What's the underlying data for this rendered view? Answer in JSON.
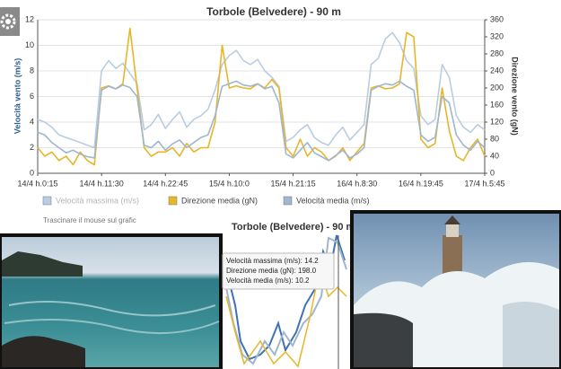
{
  "chart_data": [
    {
      "type": "line",
      "title": "Torbole (Belvedere) - 90 m",
      "y_label": "Velocità vento (m/s)",
      "y2_label": "Direzione vento (gN)",
      "categories": [
        "14/4 h.0:15",
        null,
        null,
        null,
        null,
        null,
        null,
        null,
        null,
        "14/4 h.11:30",
        null,
        null,
        null,
        null,
        null,
        null,
        null,
        null,
        "14/4 h.22:45",
        null,
        null,
        null,
        null,
        null,
        null,
        null,
        null,
        "15/4 h.10:0",
        null,
        null,
        null,
        null,
        null,
        null,
        null,
        null,
        "15/4 h.21:15",
        null,
        null,
        null,
        null,
        null,
        null,
        null,
        null,
        "16/4 h.8:30",
        null,
        null,
        null,
        null,
        null,
        null,
        null,
        null,
        "16/4 h.19:45",
        null,
        null,
        null,
        null,
        null,
        null,
        null,
        null,
        "17/4 h.5:45"
      ],
      "ylim": [
        0,
        12
      ],
      "yticks": [
        0,
        2,
        4,
        6,
        8,
        10,
        12
      ],
      "y2lim": [
        0,
        360
      ],
      "y2ticks": [
        0,
        40,
        80,
        120,
        160,
        200,
        240,
        280,
        320,
        360
      ],
      "series": [
        {
          "name": "Velocità massima (m/s)",
          "color": "#b9cde2",
          "values": [
            4.2,
            4.0,
            3.6,
            3.0,
            2.8,
            2.6,
            2.4,
            2.2,
            2.0,
            8.0,
            8.8,
            8.2,
            8.6,
            7.8,
            7.0,
            3.4,
            3.8,
            4.6,
            3.5,
            4.2,
            4.8,
            3.6,
            4.2,
            4.5,
            5.0,
            6.5,
            8.5,
            9.2,
            9.6,
            8.8,
            8.5,
            8.9,
            8.0,
            7.5,
            6.8,
            2.5,
            2.8,
            3.4,
            3.8,
            2.8,
            2.4,
            2.2,
            3.0,
            3.6,
            2.6,
            3.2,
            3.8,
            8.5,
            9.0,
            10.5,
            11.0,
            10.2,
            8.8,
            8.2,
            4.5,
            3.8,
            4.2,
            8.5,
            7.5,
            4.5,
            3.6,
            3.2,
            3.8,
            3.4
          ]
        },
        {
          "name": "Direzione media (gN)",
          "color": "#e6b629",
          "axis": "y2",
          "values": [
            60,
            40,
            50,
            30,
            40,
            20,
            50,
            30,
            20,
            200,
            205,
            198,
            210,
            340,
            200,
            60,
            40,
            50,
            50,
            60,
            40,
            70,
            50,
            60,
            60,
            120,
            300,
            200,
            205,
            200,
            198,
            210,
            200,
            220,
            200,
            60,
            40,
            80,
            40,
            60,
            50,
            30,
            40,
            60,
            30,
            50,
            70,
            200,
            205,
            198,
            200,
            210,
            330,
            320,
            80,
            60,
            70,
            200,
            100,
            40,
            30,
            60,
            80,
            40
          ]
        },
        {
          "name": "Velocità media (m/s)",
          "color": "#9fb6cf",
          "values": [
            3.2,
            3.0,
            2.4,
            2.0,
            1.6,
            1.8,
            1.5,
            1.3,
            1.2,
            6.5,
            6.8,
            6.6,
            6.9,
            6.7,
            6.0,
            2.2,
            2.0,
            2.5,
            1.8,
            2.3,
            2.6,
            2.0,
            2.4,
            2.8,
            3.0,
            4.5,
            6.8,
            7.0,
            7.2,
            6.9,
            6.8,
            7.0,
            6.6,
            6.8,
            5.5,
            1.5,
            1.2,
            1.8,
            2.4,
            1.6,
            1.3,
            1.0,
            1.4,
            1.8,
            1.2,
            1.5,
            2.0,
            6.5,
            6.8,
            7.0,
            6.9,
            7.2,
            6.8,
            6.5,
            3.0,
            2.5,
            2.8,
            6.0,
            5.5,
            3.0,
            2.2,
            1.8,
            2.5,
            2.0
          ]
        }
      ],
      "grid": true,
      "hint": "Trascinare il mouse sul grafic"
    },
    {
      "type": "line",
      "title": "Torbole (Belvedere) - 90 m",
      "tooltip": [
        "Velocità massima (m/s): 14.2",
        "Direzione media (gN): 198.0",
        "Velocità media (m/s): 10.2"
      ]
    }
  ]
}
